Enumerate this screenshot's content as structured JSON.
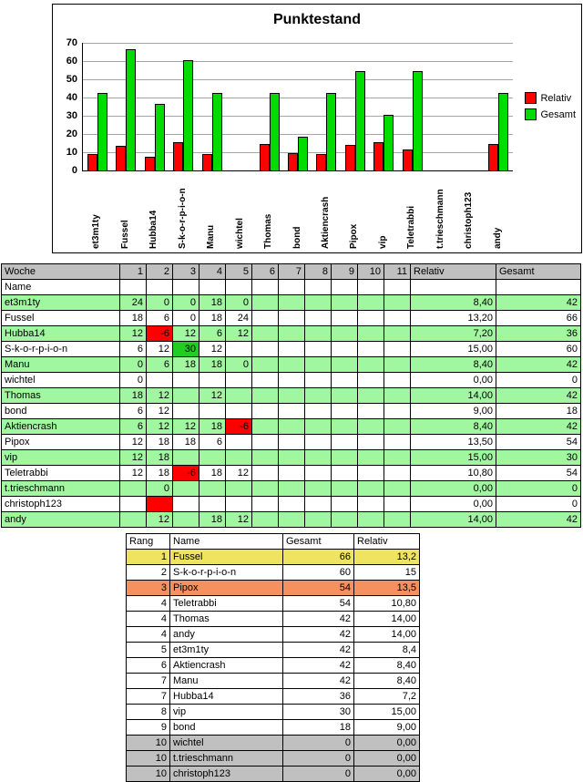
{
  "chart_data": {
    "type": "bar",
    "title": "Punktestand",
    "categories": [
      "et3m1ty",
      "Fussel",
      "Hubba14",
      "S-k-o-r-p-i-o-n",
      "Manu",
      "wichtel",
      "Thomas",
      "bond",
      "Aktiencrash",
      "Pipox",
      "vip",
      "Teletrabbi",
      "t.trieschmann",
      "christoph123",
      "andy"
    ],
    "series": [
      {
        "name": "Relativ",
        "color": "#FF0000",
        "values": [
          8.4,
          13.2,
          7.2,
          15,
          8.4,
          0,
          14,
          9,
          8.4,
          13.5,
          15,
          10.8,
          0,
          0,
          14
        ]
      },
      {
        "name": "Gesamt",
        "color": "#00DC00",
        "values": [
          42,
          66,
          36,
          60,
          42,
          0,
          42,
          18,
          42,
          54,
          30,
          54,
          0,
          0,
          42
        ]
      }
    ],
    "xlabel": "",
    "ylabel": "",
    "ylim": [
      0,
      70
    ],
    "y_ticks": [
      0,
      10,
      20,
      30,
      40,
      50,
      60,
      70
    ],
    "grid": true,
    "legend_position": "right"
  },
  "weekly_table": {
    "header": {
      "name": "Woche",
      "weeks": [
        "1",
        "2",
        "3",
        "4",
        "5",
        "6",
        "7",
        "8",
        "9",
        "10",
        "11"
      ],
      "relativ": "Relativ",
      "gesamt": "Gesamt"
    },
    "subheader": "Name",
    "colors": {
      "header_bg": "#C0C0C0",
      "green_row": "#A0F7A0",
      "red_cell": "#FF0000",
      "highlight_cell": "#22CC22"
    },
    "rows": [
      {
        "name": "et3m1ty",
        "bg": "green",
        "weeks": [
          "24",
          "0",
          "0",
          "18",
          "0",
          "",
          "",
          "",
          "",
          "",
          ""
        ],
        "marks": {},
        "relativ": "8,40",
        "gesamt": "42"
      },
      {
        "name": "Fussel",
        "bg": "white",
        "weeks": [
          "18",
          "6",
          "0",
          "18",
          "24",
          "",
          "",
          "",
          "",
          "",
          ""
        ],
        "marks": {},
        "relativ": "13,20",
        "gesamt": "66"
      },
      {
        "name": "Hubba14",
        "bg": "green",
        "weeks": [
          "12",
          "-6",
          "12",
          "6",
          "12",
          "",
          "",
          "",
          "",
          "",
          ""
        ],
        "marks": {
          "1": "red"
        },
        "relativ": "7,20",
        "gesamt": "36"
      },
      {
        "name": "S-k-o-r-p-i-o-n",
        "bg": "white",
        "weeks": [
          "6",
          "12",
          "30",
          "12",
          "",
          "",
          "",
          "",
          "",
          "",
          ""
        ],
        "marks": {
          "2": "green"
        },
        "relativ": "15,00",
        "gesamt": "60"
      },
      {
        "name": "Manu",
        "bg": "green",
        "weeks": [
          "0",
          "6",
          "18",
          "18",
          "0",
          "",
          "",
          "",
          "",
          "",
          ""
        ],
        "marks": {},
        "relativ": "8,40",
        "gesamt": "42"
      },
      {
        "name": "wichtel",
        "bg": "white",
        "weeks": [
          "0",
          "",
          "",
          "",
          "",
          "",
          "",
          "",
          "",
          "",
          ""
        ],
        "marks": {},
        "relativ": "0,00",
        "gesamt": "0"
      },
      {
        "name": "Thomas",
        "bg": "green",
        "weeks": [
          "18",
          "12",
          "",
          "12",
          "",
          "",
          "",
          "",
          "",
          "",
          ""
        ],
        "marks": {},
        "relativ": "14,00",
        "gesamt": "42"
      },
      {
        "name": "bond",
        "bg": "white",
        "weeks": [
          "6",
          "12",
          "",
          "",
          "",
          "",
          "",
          "",
          "",
          "",
          ""
        ],
        "marks": {},
        "relativ": "9,00",
        "gesamt": "18"
      },
      {
        "name": "Aktiencrash",
        "bg": "green",
        "weeks": [
          "6",
          "12",
          "12",
          "18",
          "-6",
          "",
          "",
          "",
          "",
          "",
          ""
        ],
        "marks": {
          "4": "red"
        },
        "relativ": "8,40",
        "gesamt": "42"
      },
      {
        "name": "Pipox",
        "bg": "white",
        "weeks": [
          "12",
          "18",
          "18",
          "6",
          "",
          "",
          "",
          "",
          "",
          "",
          ""
        ],
        "marks": {},
        "relativ": "13,50",
        "gesamt": "54"
      },
      {
        "name": "vip",
        "bg": "green",
        "weeks": [
          "12",
          "18",
          "",
          "",
          "",
          "",
          "",
          "",
          "",
          "",
          ""
        ],
        "marks": {},
        "relativ": "15,00",
        "gesamt": "30"
      },
      {
        "name": "Teletrabbi",
        "bg": "white",
        "weeks": [
          "12",
          "18",
          "-6",
          "18",
          "12",
          "",
          "",
          "",
          "",
          "",
          ""
        ],
        "marks": {
          "2": "red"
        },
        "relativ": "10,80",
        "gesamt": "54"
      },
      {
        "name": "t.trieschmann",
        "bg": "green",
        "weeks": [
          "",
          "0",
          "",
          "",
          "",
          "",
          "",
          "",
          "",
          "",
          ""
        ],
        "marks": {},
        "relativ": "0,00",
        "gesamt": "0"
      },
      {
        "name": "christoph123",
        "bg": "white",
        "weeks": [
          "",
          "",
          "",
          "",
          "",
          "",
          "",
          "",
          "",
          "",
          ""
        ],
        "marks": {
          "1": "red"
        },
        "relativ": "0,00",
        "gesamt": "0"
      },
      {
        "name": "andy",
        "bg": "green",
        "weeks": [
          "",
          "12",
          "",
          "18",
          "12",
          "",
          "",
          "",
          "",
          "",
          ""
        ],
        "marks": {},
        "relativ": "14,00",
        "gesamt": "42"
      }
    ]
  },
  "ranking_table": {
    "headers": [
      "Rang",
      "Name",
      "Gesamt",
      "Relativ"
    ],
    "rows": [
      {
        "rang": "1",
        "name": "Fussel",
        "gesamt": "66",
        "relativ": "13,2",
        "bg": "#EFE45F"
      },
      {
        "rang": "2",
        "name": "S-k-o-r-p-i-o-n",
        "gesamt": "60",
        "relativ": "15",
        "bg": "#FFFFFF"
      },
      {
        "rang": "3",
        "name": "Pipox",
        "gesamt": "54",
        "relativ": "13,5",
        "bg": "#F5915F"
      },
      {
        "rang": "4",
        "name": "Teletrabbi",
        "gesamt": "54",
        "relativ": "10,80",
        "bg": "#FFFFFF"
      },
      {
        "rang": "4",
        "name": "Thomas",
        "gesamt": "42",
        "relativ": "14,00",
        "bg": "#FFFFFF"
      },
      {
        "rang": "4",
        "name": "andy",
        "gesamt": "42",
        "relativ": "14,00",
        "bg": "#FFFFFF"
      },
      {
        "rang": "5",
        "name": "et3m1ty",
        "gesamt": "42",
        "relativ": "8,4",
        "bg": "#FFFFFF"
      },
      {
        "rang": "6",
        "name": "Aktiencrash",
        "gesamt": "42",
        "relativ": "8,40",
        "bg": "#FFFFFF"
      },
      {
        "rang": "7",
        "name": "Manu",
        "gesamt": "42",
        "relativ": "8,40",
        "bg": "#FFFFFF"
      },
      {
        "rang": "7",
        "name": "Hubba14",
        "gesamt": "36",
        "relativ": "7,2",
        "bg": "#FFFFFF"
      },
      {
        "rang": "8",
        "name": "vip",
        "gesamt": "30",
        "relativ": "15,00",
        "bg": "#FFFFFF"
      },
      {
        "rang": "9",
        "name": "bond",
        "gesamt": "18",
        "relativ": "9,00",
        "bg": "#FFFFFF"
      },
      {
        "rang": "10",
        "name": "wichtel",
        "gesamt": "0",
        "relativ": "0,00",
        "bg": "#C0C0C0"
      },
      {
        "rang": "10",
        "name": "t.trieschmann",
        "gesamt": "0",
        "relativ": "0,00",
        "bg": "#C0C0C0"
      },
      {
        "rang": "10",
        "name": "christoph123",
        "gesamt": "0",
        "relativ": "0,00",
        "bg": "#C0C0C0"
      }
    ]
  }
}
